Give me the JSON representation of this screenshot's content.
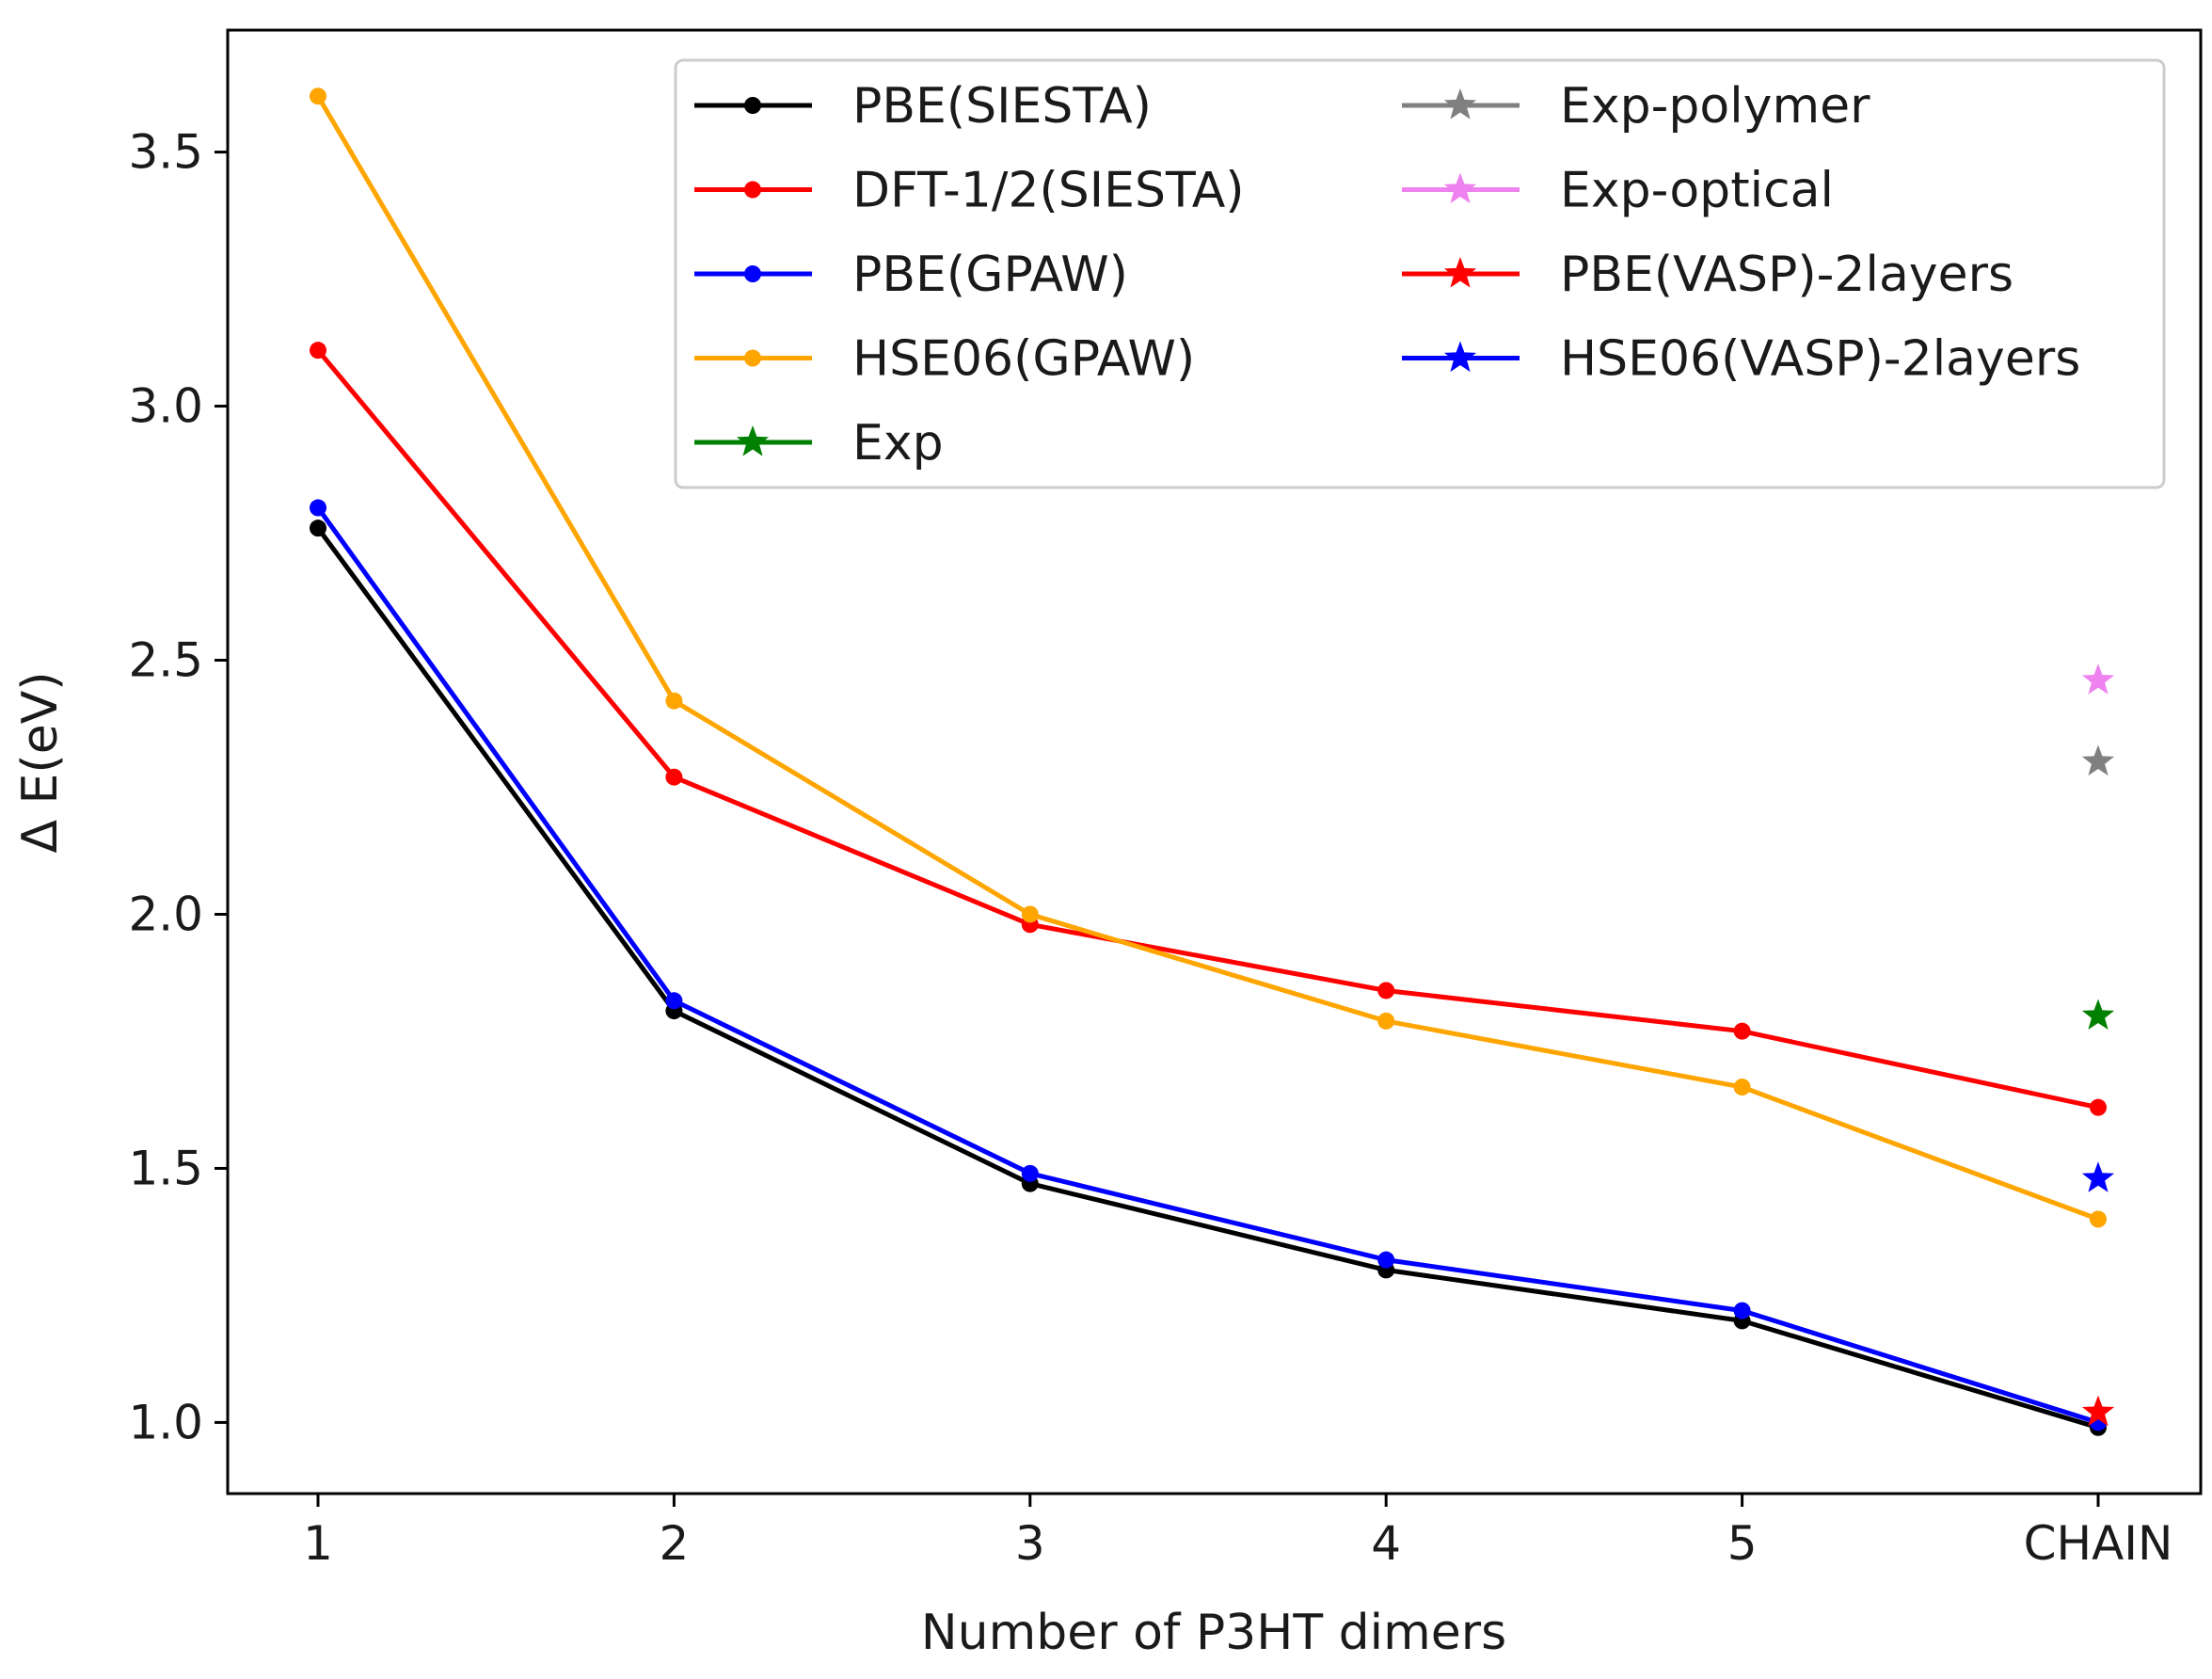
{
  "chart_data": {
    "type": "line",
    "title": "",
    "xlabel": "Number of  P3HT dimers",
    "ylabel": "Δ E(eV)",
    "categories": [
      "1",
      "2",
      "3",
      "4",
      "5",
      "CHAIN"
    ],
    "ylim": [
      0.86,
      3.74
    ],
    "yticks": [
      "1.0",
      "1.5",
      "2.0",
      "2.5",
      "3.0",
      "3.5"
    ],
    "grid": false,
    "legend_position": "top-right",
    "series": [
      {
        "name": "PBE(SIESTA)",
        "marker": "circle",
        "color": "#000000",
        "values": [
          2.76,
          1.81,
          1.47,
          1.3,
          1.2,
          0.99
        ]
      },
      {
        "name": "DFT-1/2(SIESTA)",
        "marker": "circle",
        "color": "#ff0000",
        "values": [
          3.11,
          2.27,
          1.98,
          1.85,
          1.77,
          1.62
        ]
      },
      {
        "name": "PBE(GPAW)",
        "marker": "circle",
        "color": "#0000ff",
        "values": [
          2.8,
          1.83,
          1.49,
          1.32,
          1.22,
          1.0
        ]
      },
      {
        "name": "HSE06(GPAW)",
        "marker": "circle",
        "color": "#ffa500",
        "values": [
          3.61,
          2.42,
          2.0,
          1.79,
          1.66,
          1.4
        ]
      },
      {
        "name": "Exp",
        "marker": "star",
        "color": "#008000",
        "values": [
          null,
          null,
          null,
          null,
          null,
          1.8
        ]
      },
      {
        "name": "Exp-polymer",
        "marker": "star",
        "color": "#808080",
        "values": [
          null,
          null,
          null,
          null,
          null,
          2.3
        ]
      },
      {
        "name": "Exp-optical",
        "marker": "star",
        "color": "#ee82ee",
        "values": [
          null,
          null,
          null,
          null,
          null,
          2.46
        ]
      },
      {
        "name": "PBE(VASP)-2layers",
        "marker": "star",
        "color": "#ff0000",
        "values": [
          null,
          null,
          null,
          null,
          null,
          1.02
        ]
      },
      {
        "name": "HSE06(VASP)-2layers",
        "marker": "star",
        "color": "#0000ff",
        "values": [
          null,
          null,
          null,
          null,
          null,
          1.48
        ]
      }
    ]
  }
}
